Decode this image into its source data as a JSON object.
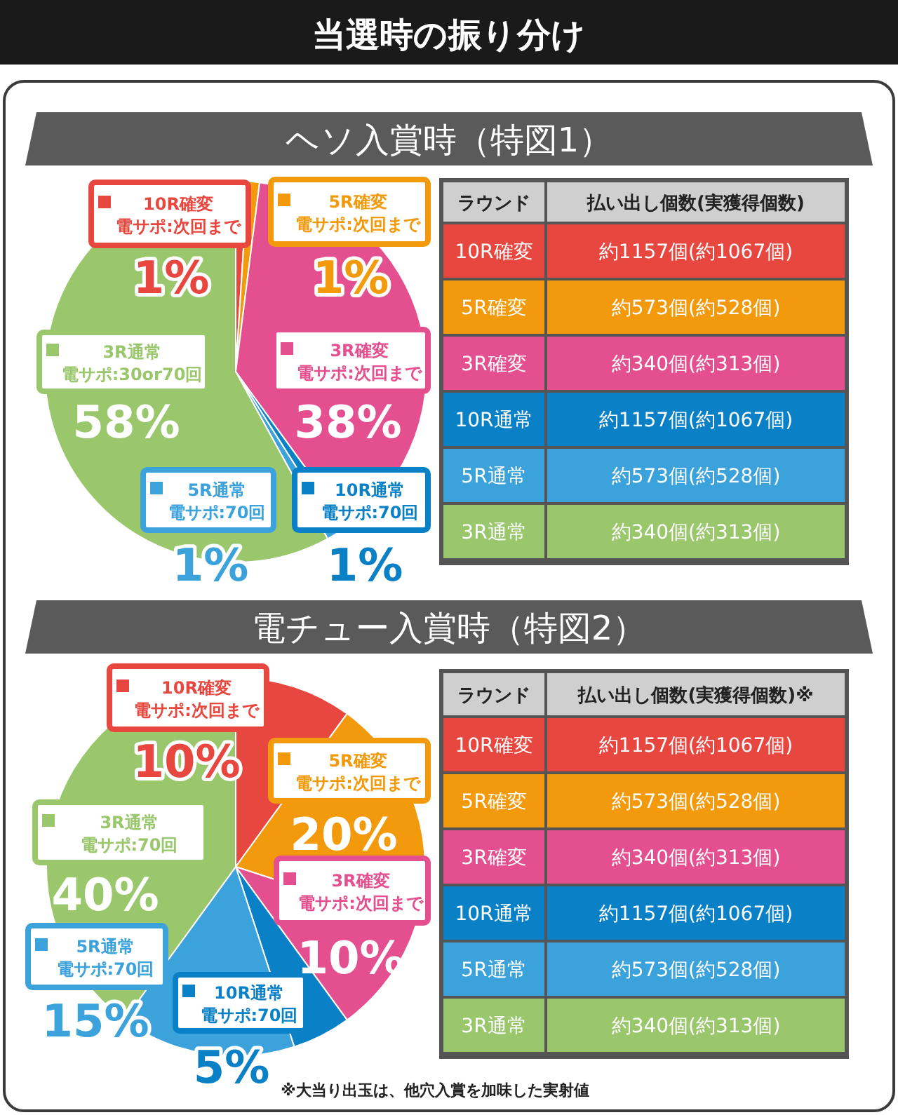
{
  "chart_data": [
    {
      "type": "pie",
      "title": "当選時の振り分け",
      "subtitle": "ヘソ入賞時（特図1）",
      "categories": [
        "10R確変",
        "5R確変",
        "3R確変",
        "10R通常",
        "5R通常",
        "3R通常"
      ],
      "annotations": [
        "電サポ:次回まで",
        "電サポ:次回まで",
        "電サポ:次回まで",
        "電サポ:70回",
        "電サポ:70回",
        "電サポ:30or70回"
      ],
      "values": [
        1,
        1,
        38,
        1,
        1,
        58
      ],
      "legend": "left",
      "colors": [
        "#e8473f",
        "#f39a0c",
        "#e4508f",
        "#0a80c6",
        "#3ba2db",
        "#9ac76c"
      ],
      "value_labels": [
        "1%",
        "1%",
        "38%",
        "1%",
        "1%",
        "58%"
      ]
    },
    {
      "type": "other",
      "annotations": [
        "ラウンド",
        "払い出し個数(実獲得個数)"
      ],
      "categories": [
        "10R確変",
        "5R確変",
        "3R確変",
        "10R通常",
        "5R通常",
        "3R通常"
      ],
      "value_labels": [
        "約1157個(約1067個)",
        "約573個(約528個)",
        "約340個(約313個)",
        "約1157個(約1067個)",
        "約573個(約528個)",
        "約340個(約313個)"
      ],
      "colors": [
        "#e8473f",
        "#f39a0c",
        "#e4508f",
        "#0a80c6",
        "#3ba2db",
        "#9ac76c"
      ]
    },
    {
      "type": "pie",
      "title": "電チュー入賞時（特図2）",
      "categories": [
        "10R確変",
        "5R確変",
        "3R確変",
        "10R通常",
        "5R通常",
        "3R通常"
      ],
      "annotations": [
        "電サポ:次回まで",
        "電サポ:次回まで",
        "電サポ:次回まで",
        "電サポ:70回",
        "電サポ:70回",
        "電サポ:70回"
      ],
      "values": [
        10,
        20,
        10,
        5,
        15,
        40
      ],
      "legend": "left",
      "colors": [
        "#e8473f",
        "#f39a0c",
        "#e4508f",
        "#0a80c6",
        "#3ba2db",
        "#9ac76c"
      ],
      "value_labels": [
        "10%",
        "20%",
        "10%",
        "5%",
        "15%",
        "40%"
      ]
    },
    {
      "type": "other",
      "annotations": [
        "ラウンド",
        "払い出し個数(実獲得個数)※",
        "※大当り出玉は、他穴入賞を加味した実射値"
      ],
      "categories": [
        "10R確変",
        "5R確変",
        "3R確変",
        "10R通常",
        "5R通常",
        "3R通常"
      ],
      "value_labels": [
        "約1157個(約1067個)",
        "約573個(約528個)",
        "約340個(約313個)",
        "約1157個(約1067個)",
        "約573個(約528個)",
        "約340個(約313個)"
      ],
      "colors": [
        "#e8473f",
        "#f39a0c",
        "#e4508f",
        "#0a80c6",
        "#3ba2db",
        "#9ac76c"
      ]
    }
  ]
}
